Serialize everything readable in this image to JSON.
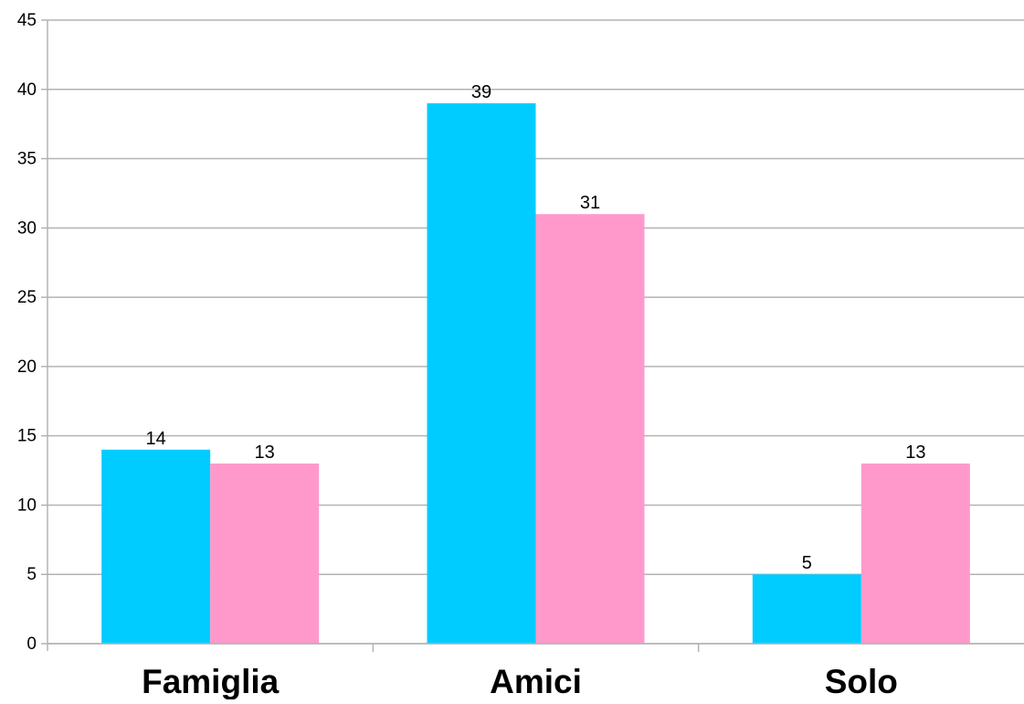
{
  "chart_data": {
    "type": "bar",
    "categories": [
      "Famiglia",
      "Amici",
      "Solo"
    ],
    "series": [
      {
        "values": [
          14,
          39,
          5
        ],
        "color": "#00ccff"
      },
      {
        "values": [
          13,
          31,
          13
        ],
        "color": "#ff99cc"
      }
    ],
    "y_ticks": [
      "0",
      "5",
      "10",
      "15",
      "20",
      "25",
      "30",
      "35",
      "40",
      "45"
    ],
    "ylim": [
      0,
      45
    ],
    "grid": true,
    "legend": "none",
    "data_labels": true
  },
  "colors": {
    "gridline": "#b3b3b3",
    "axis": "#b3b3b3",
    "text": "#000000"
  }
}
